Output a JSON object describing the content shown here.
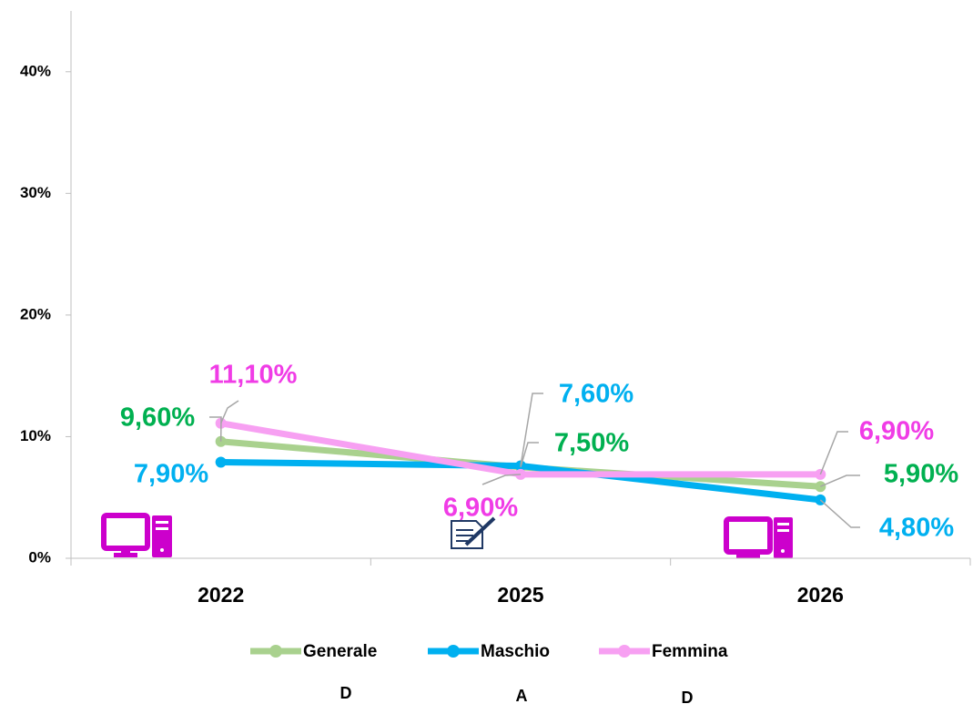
{
  "chart_data": {
    "type": "line",
    "categories": [
      "2022",
      "2025",
      "2026"
    ],
    "series": [
      {
        "name": "Generale",
        "color": "#a9d18e",
        "label_color": "#00b050",
        "values": [
          9.6,
          7.5,
          5.9
        ],
        "value_labels": [
          "9,60%",
          "7,50%",
          "5,90%"
        ]
      },
      {
        "name": "Maschio",
        "color": "#00b0f0",
        "label_color": "#00b0f0",
        "values": [
          7.9,
          7.6,
          4.8
        ],
        "value_labels": [
          "7,90%",
          "7,60%",
          "4,80%"
        ]
      },
      {
        "name": "Femmina",
        "color": "#f7a0f2",
        "label_color": "#f03ce6",
        "values": [
          11.1,
          6.9,
          6.9
        ],
        "value_labels": [
          "11,10%",
          "6,90%",
          "6,90%"
        ]
      }
    ],
    "ylim": [
      0,
      45
    ],
    "yticks": [
      {
        "value": 0,
        "label": "0%"
      },
      {
        "value": 10,
        "label": "10%"
      },
      {
        "value": 20,
        "label": "20%"
      },
      {
        "value": 30,
        "label": "30%"
      },
      {
        "value": 40,
        "label": "40%"
      }
    ],
    "grid": false,
    "legend": "bottom",
    "footer_labels": [
      "D",
      "A",
      "D"
    ]
  }
}
